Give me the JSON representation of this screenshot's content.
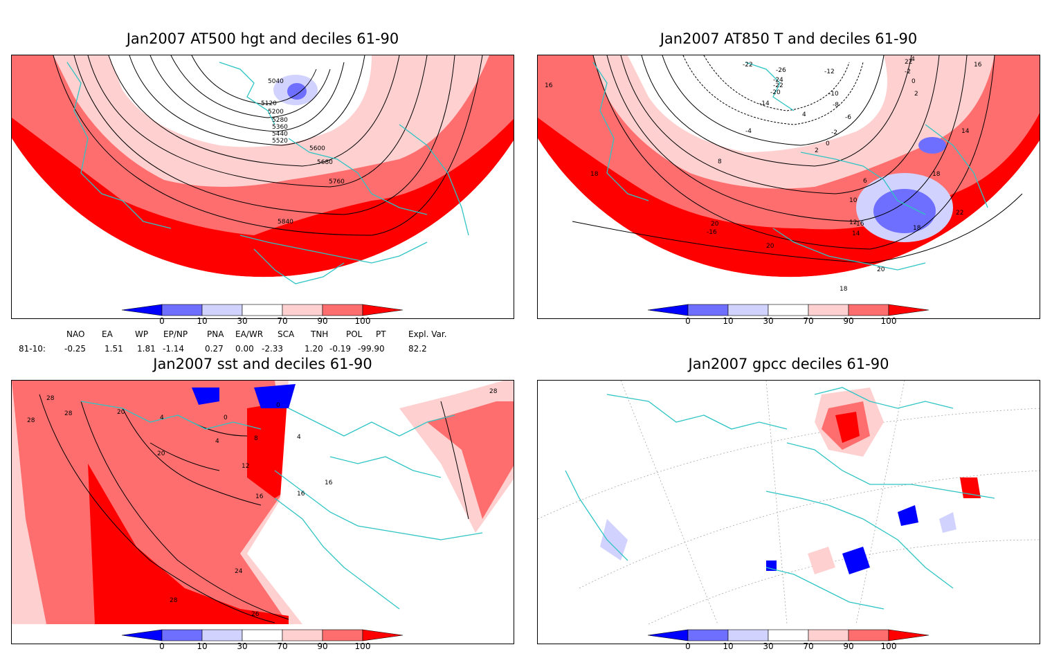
{
  "panels": {
    "p1": {
      "title": "Jan2007 AT500 hgt and deciles 61-90",
      "contour_labels": [
        "5040",
        "5120",
        "5200",
        "5280",
        "5360",
        "5440",
        "5520",
        "5600",
        "5680",
        "5760",
        "5840"
      ]
    },
    "p2": {
      "title": "Jan2007 AT850 T and deciles 61-90",
      "contour_labels": [
        "-22",
        "-26",
        "-24",
        "-22",
        "-20",
        "-14",
        "-12",
        "-10",
        "-8",
        "-6",
        "-4",
        "-2",
        "0",
        "2",
        "4",
        "6",
        "8",
        "10",
        "12",
        "14",
        "16",
        "18",
        "20",
        "22",
        "-16",
        "-4",
        "-2",
        "0",
        "2",
        "16",
        "14",
        "16",
        "18",
        "22",
        "18",
        "20",
        "20",
        "18"
      ]
    },
    "p3": {
      "title": "Jan2007 sst and deciles 61-90",
      "contour_labels": [
        "28",
        "28",
        "28",
        "20",
        "4",
        "0",
        "0",
        "4",
        "8",
        "4",
        "12",
        "16",
        "16",
        "16",
        "20",
        "24",
        "28",
        "26",
        "28"
      ]
    },
    "p4": {
      "title": "Jan2007 gpcc deciles 61-90"
    }
  },
  "colorbar": {
    "ticks": [
      "0",
      "10",
      "30",
      "70",
      "90",
      "100"
    ],
    "colors": [
      "#0000ff",
      "#6e6eff",
      "#d2d2ff",
      "#ffffff",
      "#ffd0d0",
      "#ff6e6e",
      "#ff0000"
    ]
  },
  "indices": {
    "row_label": "81-10:",
    "names": [
      "NAO",
      "EA",
      "WP",
      "EP/NP",
      "PNA",
      "EA/WR",
      "SCA",
      "TNH",
      "POL",
      "PT",
      "Expl. Var."
    ],
    "values": [
      "-0.25",
      "1.51",
      "1.81",
      "-1.14",
      "0.27",
      "0.00",
      "-2.33",
      "1.20",
      "-0.19",
      "-99.90",
      "82.2"
    ]
  },
  "colors": {
    "land_outline": "#2ec4c4",
    "contour": "#000000",
    "strong_red": "#ff0000",
    "mid_red": "#ff6e6e",
    "light_red": "#ffd0d0",
    "blue": "#0000ff",
    "mid_blue": "#6e6eff",
    "light_blue": "#d2d2ff"
  }
}
